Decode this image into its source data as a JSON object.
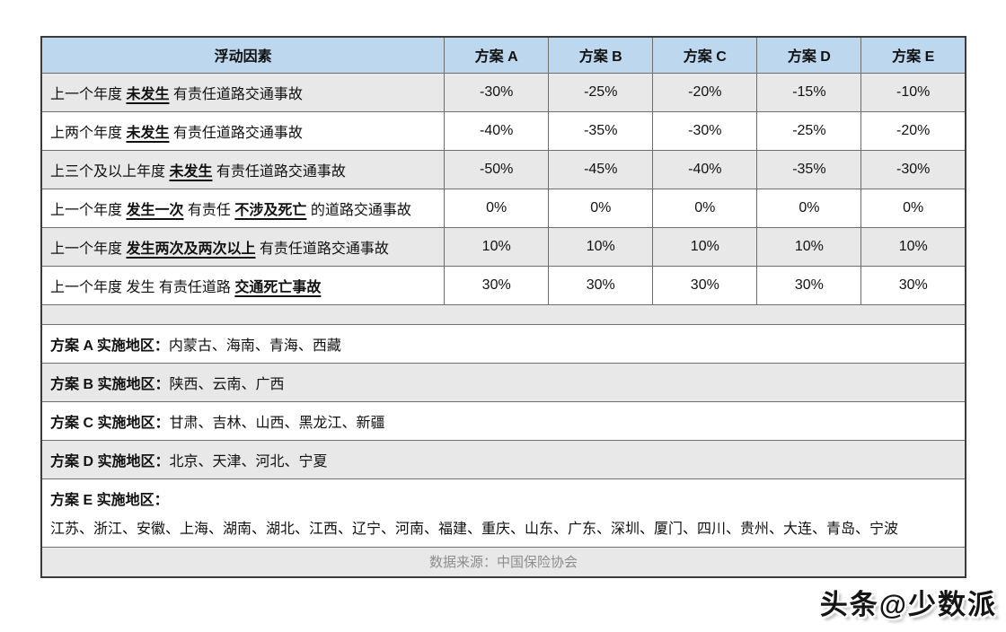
{
  "colors": {
    "header_bg": "#BDD7EE",
    "stripe_bg": "#E9E8E8"
  },
  "table": {
    "header": {
      "factor": "浮动因素",
      "plans": [
        "方案 A",
        "方案 B",
        "方案 C",
        "方案 D",
        "方案 E"
      ]
    },
    "rows": [
      {
        "segments": [
          {
            "text": "上一个年度 ",
            "emphasis": false
          },
          {
            "text": "未发生",
            "emphasis": true
          },
          {
            "text": " 有责任道路交通事故",
            "emphasis": false
          }
        ],
        "values": [
          "-30%",
          "-25%",
          "-20%",
          "-15%",
          "-10%"
        ]
      },
      {
        "segments": [
          {
            "text": "上两个年度 ",
            "emphasis": false
          },
          {
            "text": "未发生",
            "emphasis": true
          },
          {
            "text": " 有责任道路交通事故",
            "emphasis": false
          }
        ],
        "values": [
          "-40%",
          "-35%",
          "-30%",
          "-25%",
          "-20%"
        ]
      },
      {
        "segments": [
          {
            "text": "上三个及以上年度 ",
            "emphasis": false
          },
          {
            "text": "未发生",
            "emphasis": true
          },
          {
            "text": " 有责任道路交通事故",
            "emphasis": false
          }
        ],
        "values": [
          "-50%",
          "-45%",
          "-40%",
          "-35%",
          "-30%"
        ]
      },
      {
        "segments": [
          {
            "text": "上一个年度 ",
            "emphasis": false
          },
          {
            "text": "发生一次",
            "emphasis": true
          },
          {
            "text": " 有责任 ",
            "emphasis": false
          },
          {
            "text": "不涉及死亡",
            "emphasis": true
          },
          {
            "text": " 的道路交通事故",
            "emphasis": false
          }
        ],
        "values": [
          "0%",
          "0%",
          "0%",
          "0%",
          "0%"
        ]
      },
      {
        "segments": [
          {
            "text": "上一个年度 ",
            "emphasis": false
          },
          {
            "text": "发生两次及两次以上",
            "emphasis": true
          },
          {
            "text": " 有责任道路交通事故",
            "emphasis": false
          }
        ],
        "values": [
          "10%",
          "10%",
          "10%",
          "10%",
          "10%"
        ]
      },
      {
        "segments": [
          {
            "text": "上一个年度 发生 有责任道路 ",
            "emphasis": false
          },
          {
            "text": "交通死亡事故",
            "emphasis": true
          }
        ],
        "values": [
          "30%",
          "30%",
          "30%",
          "30%",
          "30%"
        ]
      }
    ],
    "regions": [
      {
        "plan": "A",
        "label": "方案 A 实施地区：",
        "list": "内蒙古、海南、青海、西藏",
        "two_line": false
      },
      {
        "plan": "B",
        "label": "方案 B 实施地区：",
        "list": "陕西、云南、广西",
        "two_line": false
      },
      {
        "plan": "C",
        "label": "方案 C 实施地区：",
        "list": "甘肃、吉林、山西、黑龙江、新疆",
        "two_line": false
      },
      {
        "plan": "D",
        "label": "方案 D 实施地区：",
        "list": "北京、天津、河北、宁夏",
        "two_line": false
      },
      {
        "plan": "E",
        "label": "方案 E 实施地区：",
        "list": "江苏、浙江、安徽、上海、湖南、湖北、江西、辽宁、河南、福建、重庆、山东、广东、深圳、厦门、四川、贵州、大连、青岛、宁波",
        "two_line": true
      }
    ],
    "source": "数据来源：中国保险协会"
  },
  "watermark": {
    "text": "头条@少数派"
  }
}
